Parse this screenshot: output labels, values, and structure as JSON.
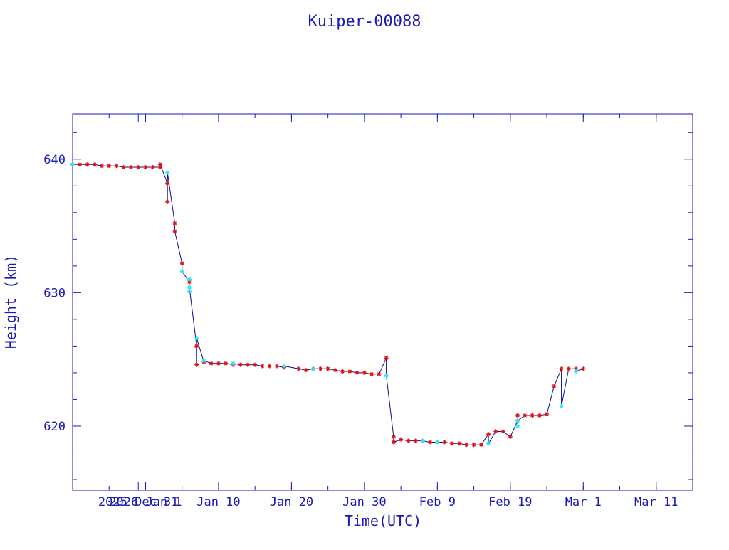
{
  "chart_data": {
    "type": "scatter",
    "title": "Kuiper-00088",
    "xlabel": "Time(UTC)",
    "ylabel": "Height (km)",
    "x_ticks": [
      {
        "x": "2025-12-31",
        "label": "2025 Dec 31"
      },
      {
        "x": "2026-01-01",
        "label": "2026 Jan 1"
      },
      {
        "x": "2026-01-11",
        "label": "Jan 10"
      },
      {
        "x": "2026-01-21",
        "label": "Jan 20"
      },
      {
        "x": "2026-01-31",
        "label": "Jan 30"
      },
      {
        "x": "2026-02-10",
        "label": "Feb  9"
      },
      {
        "x": "2026-02-20",
        "label": "Feb 19"
      },
      {
        "x": "2026-03-02",
        "label": "Mar  1"
      },
      {
        "x": "2026-03-12",
        "label": "Mar 11"
      }
    ],
    "y_ticks": [
      620,
      630,
      640
    ],
    "xlim": [
      "2025-12-22",
      "2026-03-17"
    ],
    "ylim": [
      615.2,
      643.4
    ],
    "line_color": "#0b0b8c",
    "series": [
      {
        "color": "#e11111",
        "marker": "asterisk",
        "points": [
          [
            "2025-12-22",
            639.6
          ],
          [
            "2025-12-23",
            639.6
          ],
          [
            "2025-12-24",
            639.6
          ],
          [
            "2025-12-25",
            639.6
          ],
          [
            "2025-12-26",
            639.5
          ],
          [
            "2025-12-27",
            639.5
          ],
          [
            "2025-12-28",
            639.5
          ],
          [
            "2025-12-29",
            639.4
          ],
          [
            "2025-12-30",
            639.4
          ],
          [
            "2025-12-31",
            639.4
          ],
          [
            "2026-01-01",
            639.4
          ],
          [
            "2026-01-02",
            639.4
          ],
          [
            "2026-01-03",
            639.4
          ],
          [
            "2026-01-03",
            639.6
          ],
          [
            "2026-01-04",
            638.2
          ],
          [
            "2026-01-04",
            636.8
          ],
          [
            "2026-01-05",
            635.2
          ],
          [
            "2026-01-05",
            634.6
          ],
          [
            "2026-01-06",
            632.2
          ],
          [
            "2026-01-07",
            630.8
          ],
          [
            "2026-01-08",
            626.0
          ],
          [
            "2026-01-08",
            624.6
          ],
          [
            "2026-01-09",
            624.8
          ],
          [
            "2026-01-10",
            624.7
          ],
          [
            "2026-01-11",
            624.7
          ],
          [
            "2026-01-12",
            624.7
          ],
          [
            "2026-01-13",
            624.6
          ],
          [
            "2026-01-14",
            624.6
          ],
          [
            "2026-01-15",
            624.6
          ],
          [
            "2026-01-16",
            624.6
          ],
          [
            "2026-01-17",
            624.5
          ],
          [
            "2026-01-18",
            624.5
          ],
          [
            "2026-01-19",
            624.5
          ],
          [
            "2026-01-20",
            624.4
          ],
          [
            "2026-01-22",
            624.3
          ],
          [
            "2026-01-23",
            624.2
          ],
          [
            "2026-01-24",
            624.3
          ],
          [
            "2026-01-25",
            624.3
          ],
          [
            "2026-01-26",
            624.3
          ],
          [
            "2026-01-27",
            624.2
          ],
          [
            "2026-01-28",
            624.1
          ],
          [
            "2026-01-29",
            624.1
          ],
          [
            "2026-01-30",
            624.0
          ],
          [
            "2026-01-31",
            624.0
          ],
          [
            "2026-02-01",
            623.9
          ],
          [
            "2026-02-02",
            623.9
          ],
          [
            "2026-02-03",
            625.1
          ],
          [
            "2026-02-04",
            619.2
          ],
          [
            "2026-02-04",
            618.8
          ],
          [
            "2026-02-05",
            619.0
          ],
          [
            "2026-02-06",
            618.9
          ],
          [
            "2026-02-07",
            618.9
          ],
          [
            "2026-02-08",
            618.9
          ],
          [
            "2026-02-09",
            618.8
          ],
          [
            "2026-02-10",
            618.8
          ],
          [
            "2026-02-11",
            618.8
          ],
          [
            "2026-02-12",
            618.7
          ],
          [
            "2026-02-13",
            618.7
          ],
          [
            "2026-02-14",
            618.6
          ],
          [
            "2026-02-15",
            618.6
          ],
          [
            "2026-02-16",
            618.6
          ],
          [
            "2026-02-17",
            619.4
          ],
          [
            "2026-02-18",
            619.6
          ],
          [
            "2026-02-19",
            619.6
          ],
          [
            "2026-02-20",
            619.2
          ],
          [
            "2026-02-21",
            620.4
          ],
          [
            "2026-02-21",
            620.8
          ],
          [
            "2026-02-22",
            620.8
          ],
          [
            "2026-02-23",
            620.8
          ],
          [
            "2026-02-24",
            620.8
          ],
          [
            "2026-02-25",
            620.9
          ],
          [
            "2026-02-26",
            623.0
          ],
          [
            "2026-02-27",
            624.3
          ],
          [
            "2026-02-28",
            624.3
          ],
          [
            "2026-03-01",
            624.3
          ],
          [
            "2026-03-02",
            624.3
          ]
        ]
      },
      {
        "color": "#33e6f0",
        "marker": "asterisk",
        "points": [
          [
            "2025-12-22",
            639.6
          ],
          [
            "2026-01-04",
            639.0
          ],
          [
            "2026-01-06",
            631.6
          ],
          [
            "2026-01-07",
            631.0
          ],
          [
            "2026-01-07",
            630.1
          ],
          [
            "2026-01-07",
            630.4
          ],
          [
            "2026-01-08",
            626.6
          ],
          [
            "2026-01-09",
            624.9
          ],
          [
            "2026-01-13",
            624.7
          ],
          [
            "2026-01-20",
            624.5
          ],
          [
            "2026-01-24",
            624.3
          ],
          [
            "2026-02-03",
            623.8
          ],
          [
            "2026-02-08",
            618.9
          ],
          [
            "2026-02-10",
            618.8
          ],
          [
            "2026-02-17",
            618.7
          ],
          [
            "2026-02-21",
            620.0
          ],
          [
            "2026-02-21",
            620.4
          ],
          [
            "2026-02-27",
            621.5
          ],
          [
            "2026-03-01",
            624.1
          ]
        ]
      }
    ]
  }
}
